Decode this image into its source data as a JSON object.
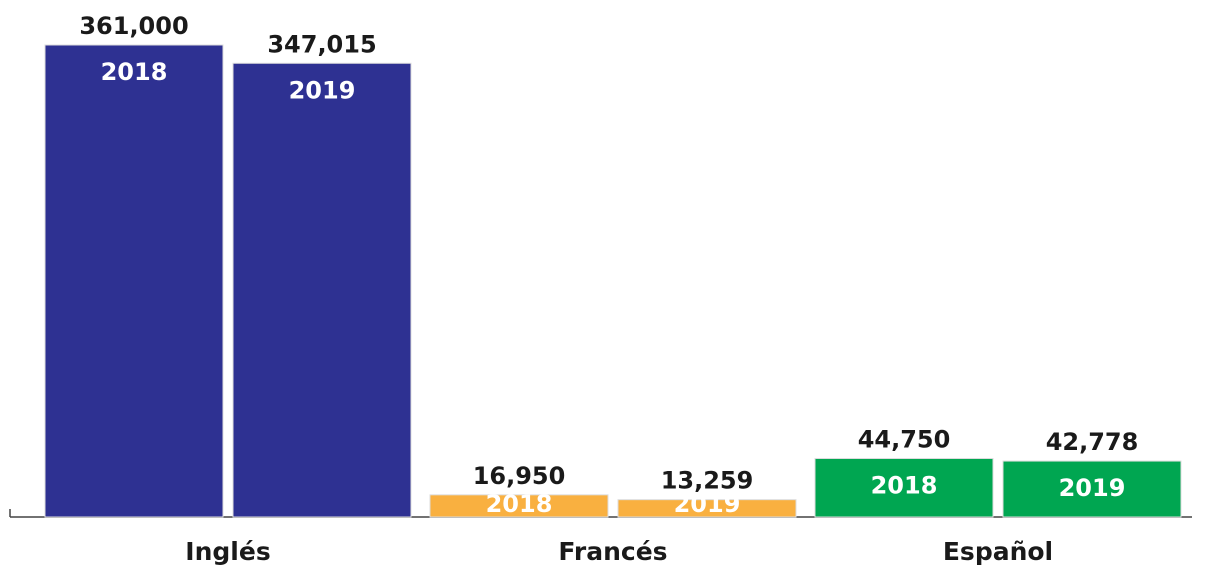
{
  "chart_data": {
    "type": "bar",
    "categories": [
      "Inglés",
      "Francés",
      "Español"
    ],
    "colors": [
      "#2e3192",
      "#f9b040",
      "#00a651"
    ],
    "series": [
      {
        "name": "2018",
        "values": [
          361000,
          16950,
          44750
        ],
        "value_labels": [
          "361,000",
          "16,950",
          "44,750"
        ]
      },
      {
        "name": "2019",
        "values": [
          347015,
          13259,
          42778
        ],
        "value_labels": [
          "347,015",
          "13,259",
          "42,778"
        ]
      }
    ]
  }
}
